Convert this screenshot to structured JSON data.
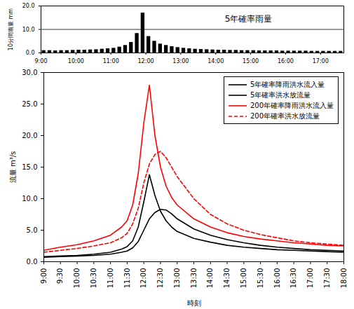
{
  "chart_data": [
    {
      "type": "bar",
      "title": "5年確率雨量",
      "ylabel": "10分間雨量 mm",
      "color": "#000000",
      "grid": true,
      "x": [
        540,
        550,
        560,
        570,
        580,
        590,
        600,
        610,
        620,
        630,
        640,
        650,
        660,
        670,
        680,
        690,
        700,
        710,
        720,
        730,
        740,
        750,
        760,
        770,
        780,
        790,
        800,
        810,
        820,
        830,
        840,
        850,
        860,
        870,
        880,
        890,
        900,
        910,
        920,
        930,
        940,
        950,
        960,
        970,
        980,
        990,
        1000,
        1010,
        1020,
        1030,
        1040,
        1050
      ],
      "values": [
        1.0,
        1.0,
        0.9,
        1.0,
        1.0,
        1.1,
        1.2,
        1.2,
        1.3,
        1.4,
        1.6,
        1.8,
        2.0,
        2.5,
        3.2,
        4.5,
        8.3,
        17.0,
        7.0,
        5.0,
        3.8,
        3.2,
        2.7,
        2.3,
        2.0,
        1.8,
        1.6,
        1.5,
        1.4,
        1.3,
        1.2,
        1.2,
        1.1,
        1.1,
        1.0,
        1.0,
        1.0,
        0.9,
        0.9,
        0.9,
        0.9,
        0.8,
        0.8,
        0.8,
        0.8,
        0.8,
        0.7,
        0.7,
        0.7,
        0.7,
        0.7,
        0.7
      ],
      "xlim": [
        540,
        1060
      ],
      "xticks": [
        {
          "value": 540,
          "label": "9:00"
        },
        {
          "value": 600,
          "label": "10:00"
        },
        {
          "value": 660,
          "label": "11:00"
        },
        {
          "value": 720,
          "label": "12:00"
        },
        {
          "value": 780,
          "label": "13:00"
        },
        {
          "value": 840,
          "label": "14:00"
        },
        {
          "value": 900,
          "label": "15:00"
        },
        {
          "value": 960,
          "label": "16:00"
        },
        {
          "value": 1020,
          "label": "17:00"
        }
      ],
      "ylim": [
        0,
        20
      ],
      "yticks": [
        {
          "value": 0,
          "label": "0.0"
        },
        {
          "value": 10,
          "label": "10.0"
        },
        {
          "value": 20,
          "label": "20.0"
        }
      ]
    },
    {
      "type": "line",
      "xlabel": "時刻",
      "ylabel": "流量 m³/s",
      "grid": false,
      "legend": "top-right",
      "x": [
        540,
        570,
        600,
        630,
        660,
        680,
        690,
        700,
        710,
        720,
        730,
        740,
        750,
        760,
        770,
        780,
        810,
        840,
        870,
        900,
        930,
        960,
        990,
        1020,
        1050,
        1080
      ],
      "series": [
        {
          "name": "5年確率降雨洪水流入量",
          "color": "#000000",
          "line_style": "solid",
          "values": [
            0.8,
            0.9,
            1.0,
            1.2,
            1.5,
            2.0,
            2.4,
            3.3,
            5.5,
            9.5,
            13.8,
            10.5,
            8.0,
            6.5,
            5.5,
            4.8,
            3.7,
            3.1,
            2.6,
            2.3,
            2.1,
            1.9,
            1.8,
            1.7,
            1.6,
            1.5
          ]
        },
        {
          "name": "5年確率洪水放流量",
          "color": "#000000",
          "line_style": "solid",
          "values": [
            0.7,
            0.8,
            0.9,
            1.0,
            1.2,
            1.5,
            1.7,
            2.2,
            3.2,
            5.0,
            6.8,
            7.8,
            8.3,
            8.2,
            7.6,
            6.8,
            5.2,
            4.2,
            3.5,
            3.0,
            2.6,
            2.3,
            2.1,
            1.9,
            1.8,
            1.7
          ]
        },
        {
          "name": "200年確率降雨洪水流入量",
          "color": "#ff0000",
          "line_style": "solid",
          "values": [
            1.8,
            2.3,
            2.7,
            3.3,
            4.2,
            5.5,
            6.5,
            9.0,
            14.0,
            22.0,
            28.0,
            20.0,
            15.0,
            12.0,
            10.2,
            9.0,
            6.8,
            5.5,
            4.6,
            4.0,
            3.6,
            3.3,
            3.0,
            2.8,
            2.6,
            2.5
          ]
        },
        {
          "name": "200年確率洪水放流量",
          "color": "#ff0000",
          "line_style": "dashed",
          "values": [
            1.5,
            1.8,
            2.1,
            2.5,
            3.0,
            3.8,
            4.5,
            6.0,
            8.5,
            12.5,
            15.5,
            17.0,
            17.5,
            16.5,
            15.0,
            13.5,
            10.0,
            7.5,
            6.0,
            5.0,
            4.3,
            3.8,
            3.3,
            3.0,
            2.8,
            2.6
          ]
        }
      ],
      "xlim": [
        540,
        1080
      ],
      "xticks": [
        {
          "value": 540,
          "label": "9:00"
        },
        {
          "value": 570,
          "label": "9:30"
        },
        {
          "value": 600,
          "label": "10:00"
        },
        {
          "value": 630,
          "label": "10:30"
        },
        {
          "value": 660,
          "label": "11:00"
        },
        {
          "value": 690,
          "label": "11:30"
        },
        {
          "value": 720,
          "label": "12:00"
        },
        {
          "value": 750,
          "label": "12:30"
        },
        {
          "value": 780,
          "label": "13:00"
        },
        {
          "value": 810,
          "label": "13:30"
        },
        {
          "value": 840,
          "label": "14:00"
        },
        {
          "value": 870,
          "label": "14:30"
        },
        {
          "value": 900,
          "label": "15:00"
        },
        {
          "value": 930,
          "label": "15:30"
        },
        {
          "value": 960,
          "label": "16:00"
        },
        {
          "value": 990,
          "label": "16:30"
        },
        {
          "value": 1020,
          "label": "17:00"
        },
        {
          "value": 1050,
          "label": "17:30"
        },
        {
          "value": 1080,
          "label": "18:00"
        }
      ],
      "ylim": [
        0,
        30
      ],
      "yticks": [
        {
          "value": 0,
          "label": "0.0"
        },
        {
          "value": 5,
          "label": "5.0"
        },
        {
          "value": 10,
          "label": "10.0"
        },
        {
          "value": 15,
          "label": "15.0"
        },
        {
          "value": 20,
          "label": "20.0"
        },
        {
          "value": 25,
          "label": "25.0"
        },
        {
          "value": 30,
          "label": "30.0"
        }
      ]
    }
  ]
}
